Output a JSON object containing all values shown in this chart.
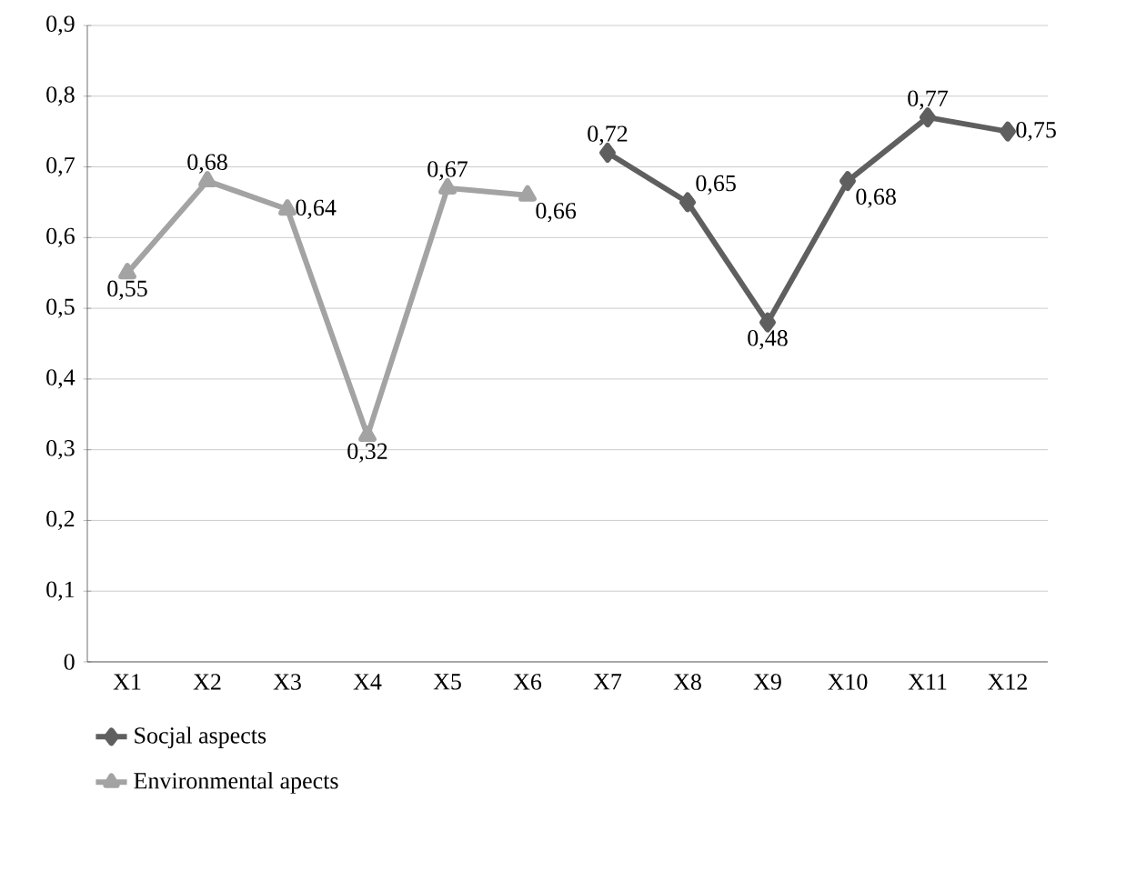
{
  "chart_data": {
    "type": "line",
    "categories": [
      "X1",
      "X2",
      "X3",
      "X4",
      "X5",
      "X6",
      "X7",
      "X8",
      "X9",
      "X10",
      "X11",
      "X12"
    ],
    "series": [
      {
        "name": "Socjal aspects",
        "color": "#5f5f5f",
        "marker": "diamond",
        "values": [
          null,
          null,
          null,
          null,
          null,
          null,
          0.72,
          0.65,
          0.48,
          0.68,
          0.77,
          0.75
        ],
        "value_labels": [
          null,
          null,
          null,
          null,
          null,
          null,
          "0,72",
          "0,65",
          "0,48",
          "0,68",
          "0,77",
          "0,75"
        ]
      },
      {
        "name": "Environmental apects",
        "color": "#a3a3a3",
        "marker": "triangle",
        "values": [
          0.55,
          0.68,
          0.64,
          0.32,
          0.67,
          0.66,
          null,
          null,
          null,
          null,
          null,
          null
        ],
        "value_labels": [
          "0,55",
          "0,68",
          "0,64",
          "0,32",
          "0,67",
          "0,66",
          null,
          null,
          null,
          null,
          null,
          null
        ]
      }
    ],
    "ylim": [
      0,
      0.9
    ],
    "yticks": [
      0,
      {
        "value": 0.1,
        "label": "0,1"
      },
      {
        "value": 0.2,
        "label": "0,2"
      },
      {
        "value": 0.3,
        "label": "0,3"
      },
      {
        "value": 0.4,
        "label": "0,4"
      },
      {
        "value": 0.5,
        "label": "0,5"
      },
      {
        "value": 0.6,
        "label": "0,6"
      },
      {
        "value": 0.7,
        "label": "0,7"
      },
      {
        "value": 0.8,
        "label": "0,8"
      },
      {
        "value": 0.9,
        "label": "0,9"
      }
    ],
    "grid": "y",
    "legend": "bottom"
  }
}
